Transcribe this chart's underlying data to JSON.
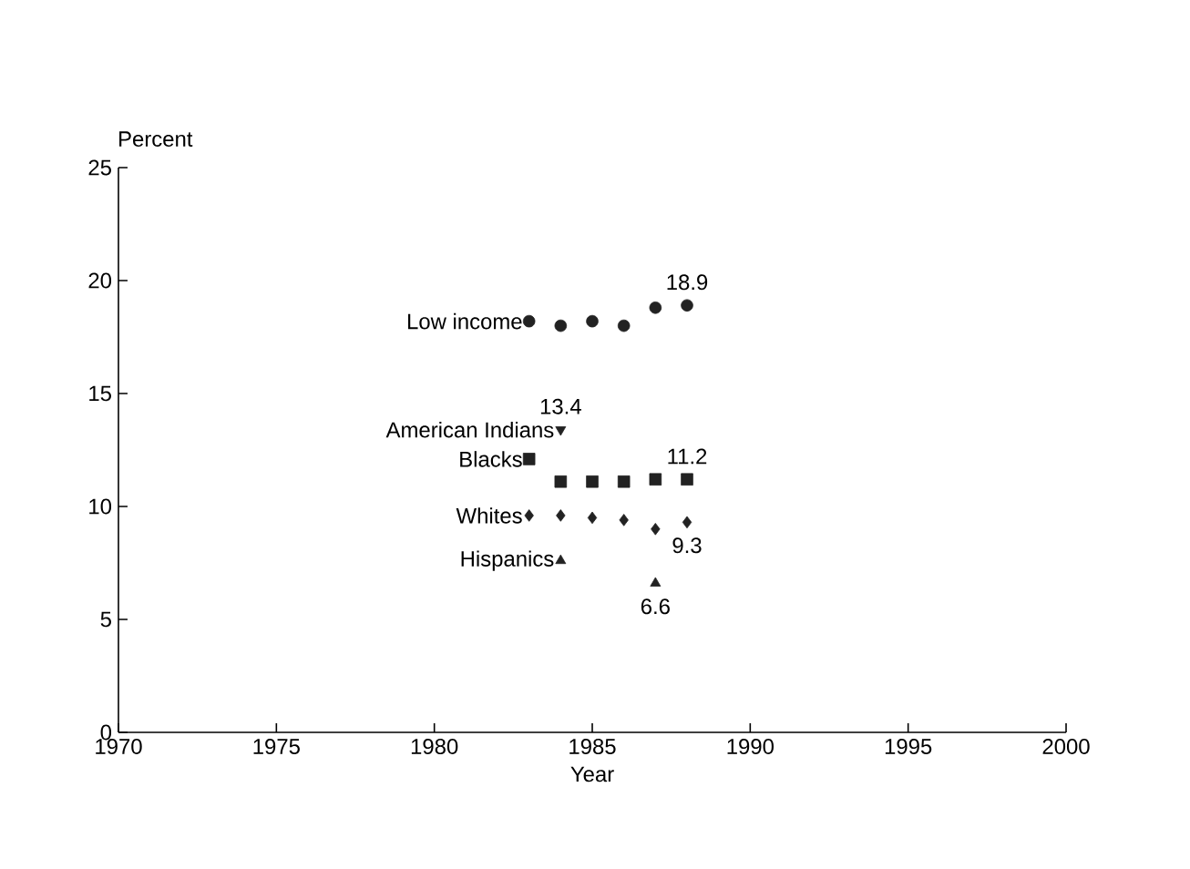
{
  "chart_data": {
    "type": "scatter",
    "xlabel": "Year",
    "ylabel": "Percent",
    "xlim": [
      1970,
      2000
    ],
    "xticks": [
      1970,
      1975,
      1980,
      1985,
      1990,
      1995,
      2000
    ],
    "ylim": [
      0,
      25
    ],
    "yticks": [
      0,
      5,
      10,
      15,
      20,
      25
    ],
    "grid": false,
    "legend": false,
    "series": [
      {
        "name": "Low income",
        "color": "#222222",
        "marker": "circle",
        "x": [
          1983,
          1984,
          1985,
          1986,
          1987,
          1988
        ],
        "values": [
          18.2,
          18.0,
          18.2,
          18.0,
          18.8,
          18.9
        ],
        "value_labels": [
          null,
          null,
          null,
          null,
          null,
          "18.9"
        ]
      },
      {
        "name": "American Indians",
        "color": "#222222",
        "marker": "triangle-down",
        "x": [
          1984
        ],
        "values": [
          13.4
        ],
        "value_labels": [
          "13.4"
        ]
      },
      {
        "name": "Blacks",
        "color": "#222222",
        "marker": "square",
        "x": [
          1983,
          1984,
          1985,
          1986,
          1987,
          1988
        ],
        "values": [
          12.1,
          11.1,
          11.1,
          11.1,
          11.2,
          11.2
        ],
        "value_labels": [
          null,
          null,
          null,
          null,
          null,
          "11.2"
        ]
      },
      {
        "name": "Whites",
        "color": "#222222",
        "marker": "diamond",
        "x": [
          1983,
          1984,
          1985,
          1986,
          1987,
          1988
        ],
        "values": [
          9.6,
          9.6,
          9.5,
          9.4,
          9.0,
          9.3
        ],
        "value_labels": [
          null,
          null,
          null,
          null,
          null,
          "9.3"
        ]
      },
      {
        "name": "Hispanics",
        "color": "#222222",
        "marker": "triangle",
        "x": [
          1984,
          1987
        ],
        "values": [
          7.6,
          6.6
        ],
        "value_labels": [
          null,
          "6.6"
        ]
      }
    ]
  }
}
